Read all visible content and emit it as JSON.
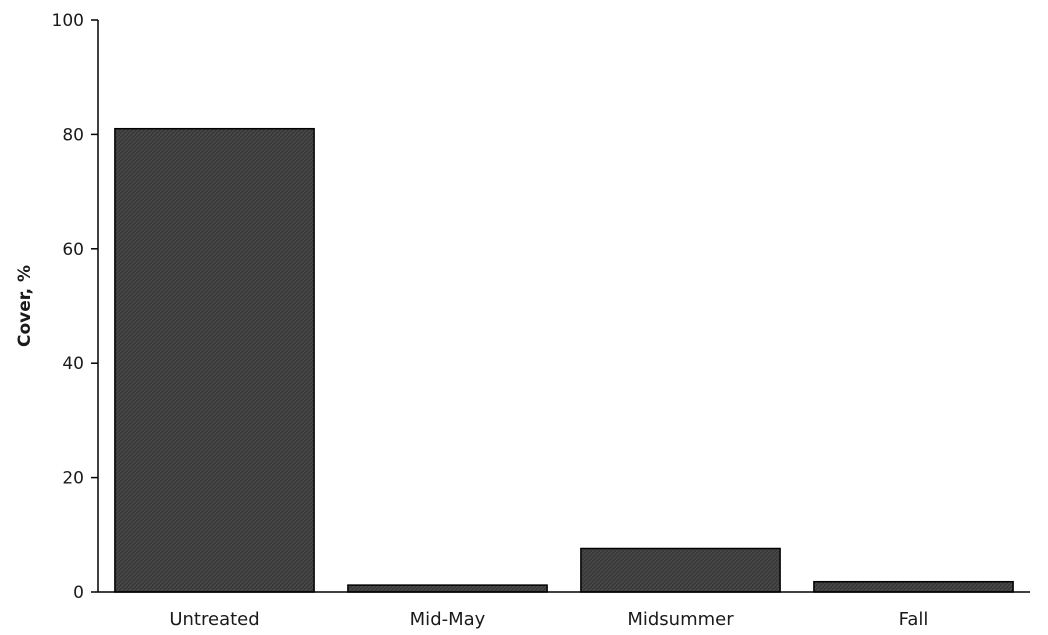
{
  "chart_data": {
    "type": "bar",
    "title": "",
    "xlabel": "",
    "ylabel": "Cover, %",
    "categories": [
      "Untreated",
      "Mid-May",
      "Midsummer",
      "Fall"
    ],
    "values": [
      81,
      1.2,
      7.6,
      1.8
    ],
    "ylim": [
      0,
      100
    ],
    "yticks": [
      0,
      20,
      40,
      60,
      80,
      100
    ],
    "grid": false,
    "legend": "none",
    "bar_color": "#3a3a3a",
    "bar_edge_color": "#000000"
  }
}
